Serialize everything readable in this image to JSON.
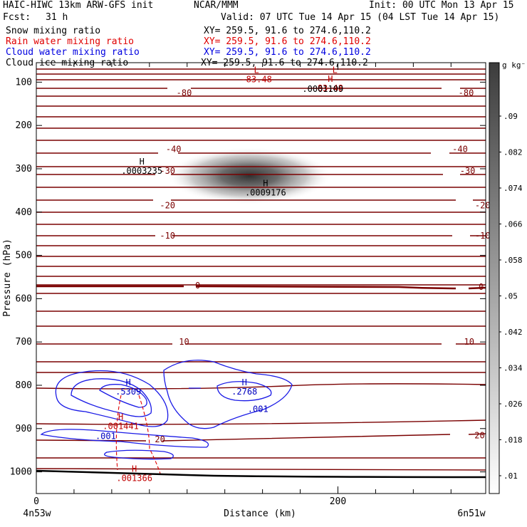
{
  "header": {
    "model": "HAIC-HIWC 13km ARW-GFS init",
    "org": "NCAR/MMM",
    "init": "Init: 00 UTC Mon 13 Apr 15",
    "fcst_label": "Fcst:",
    "fcst_value": "31 h",
    "valid": "Valid: 07 UTC Tue 14 Apr 15 (04 LST Tue 14 Apr 15)"
  },
  "legend": [
    {
      "name": "Snow mixing ratio",
      "xy": "XY= 259.5, 91.6 to 274.6,110.2",
      "color": "#000000"
    },
    {
      "name": "Rain water mixing ratio",
      "xy": "XY= 259.5, 91.6 to 274.6,110.2",
      "color": "#e00000"
    },
    {
      "name": "Cloud water mixing ratio",
      "xy": "XY= 259.5, 91.6 to 274.6,110.2",
      "color": "#0000e0"
    },
    {
      "name": "Cloud ice mixing ratio",
      "xy": "XY= 259.5, 91.6 to 274.6,110.2",
      "color": "#000000"
    }
  ],
  "chart_data": {
    "type": "line",
    "xlabel": "Distance (km)",
    "ylabel": "Pressure (hPa)",
    "xlim": [
      0,
      298
    ],
    "ylim": [
      1050,
      55
    ],
    "x_ticks": [
      0,
      200
    ],
    "y_ticks": [
      100,
      200,
      300,
      400,
      500,
      600,
      700,
      800,
      900,
      1000
    ],
    "x_endpoints": {
      "left": "4n53w",
      "right": "6n51w"
    },
    "colorbar": {
      "unit": "g kg⁻¹",
      "levels": [
        ".01",
        ".018",
        ".026",
        ".034",
        ".042",
        ".05",
        ".058",
        ".066",
        ".074",
        ".082",
        ".09"
      ],
      "fill_start": "#ffffff",
      "fill_end": "#3c3c3c"
    },
    "temperature_labels": [
      {
        "text": "-80",
        "x": 98,
        "p": 125
      },
      {
        "text": "-80",
        "x": 285,
        "p": 125
      },
      {
        "text": "-40",
        "x": 91,
        "p": 255
      },
      {
        "text": "-40",
        "x": 281,
        "p": 255
      },
      {
        "text": "-30",
        "x": 87,
        "p": 305
      },
      {
        "text": "-30",
        "x": 286,
        "p": 305
      },
      {
        "text": "-20",
        "x": 87,
        "p": 385
      },
      {
        "text": "-20",
        "x": 296,
        "p": 385
      },
      {
        "text": "-10",
        "x": 87,
        "p": 455
      },
      {
        "text": "-10",
        "x": 296,
        "p": 455
      },
      {
        "text": "0",
        "x": 107,
        "p": 570
      },
      {
        "text": "0",
        "x": 295,
        "p": 573
      },
      {
        "text": "10",
        "x": 98,
        "p": 700
      },
      {
        "text": "10",
        "x": 287,
        "p": 700
      },
      {
        "text": "20",
        "x": 82,
        "p": 925
      },
      {
        "text": "20",
        "x": 294,
        "p": 916
      }
    ],
    "extrema_labels": [
      {
        "symbol": "L",
        "value": "-83.48",
        "x": 146,
        "p": 79,
        "color": "#c00000"
      },
      {
        "symbol": "L",
        "value": "",
        "x": 198,
        "p": 79,
        "color": "#c00000"
      },
      {
        "symbol": "H",
        "value": "83.48",
        "x": 195,
        "p": 99,
        "color": "#c00000"
      },
      {
        "symbol": "",
        "value": ".0001109",
        "x": 190,
        "p": 116,
        "color": "#000000"
      },
      {
        "symbol": "H",
        "value": ".0003235",
        "x": 70,
        "p": 290,
        "color": "#000000"
      },
      {
        "symbol": "H",
        "value": ".0009176",
        "x": 152,
        "p": 340,
        "color": "#000000"
      },
      {
        "symbol": "H",
        "value": ".5309",
        "x": 61,
        "p": 800,
        "color": "#0000c0"
      },
      {
        "symbol": "H",
        "value": ".2768",
        "x": 138,
        "p": 800,
        "color": "#0000c0"
      },
      {
        "symbol": "",
        "value": ".001",
        "x": 147,
        "p": 855,
        "color": "#0000c0"
      },
      {
        "symbol": "H",
        "value": ".001441",
        "x": 56,
        "p": 880,
        "color": "#c00000"
      },
      {
        "symbol": "",
        "value": ".001",
        "x": 46,
        "p": 918,
        "color": "#0000c0"
      },
      {
        "symbol": "H",
        "value": ".001366",
        "x": 65,
        "p": 1000,
        "color": "#c00000"
      }
    ],
    "snow_max": {
      "x": 150,
      "p": 330,
      "value": 0.0918
    }
  }
}
